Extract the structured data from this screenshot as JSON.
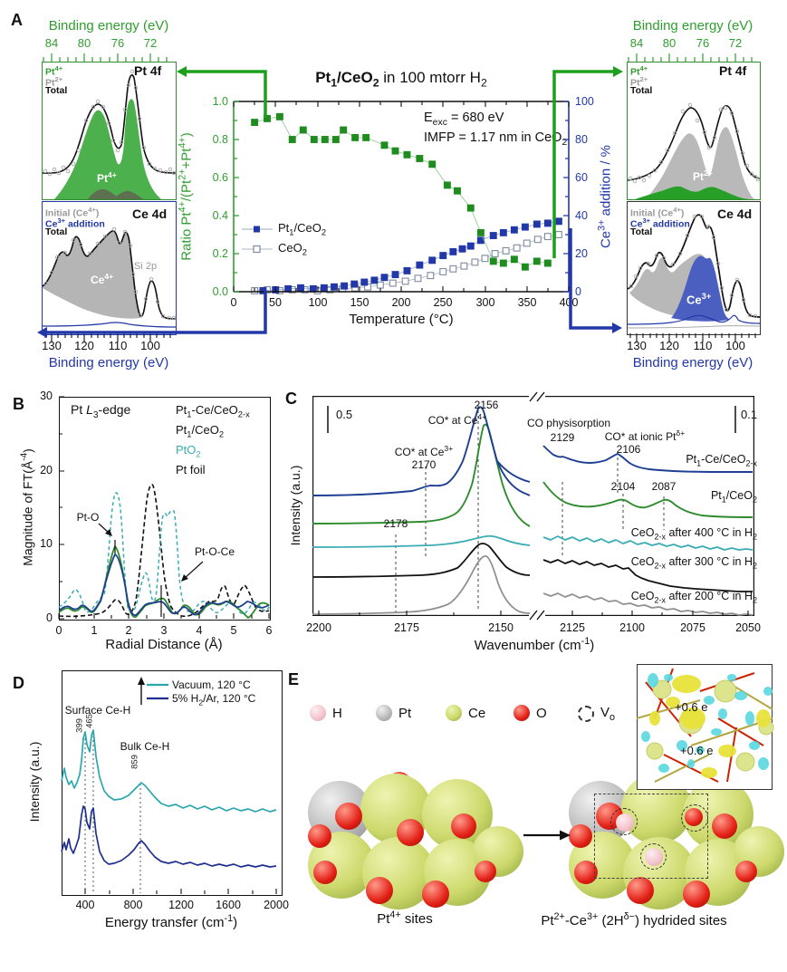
{
  "figure": {
    "panels": {
      "A": "A",
      "B": "B",
      "C": "C",
      "D": "D",
      "E": "E"
    }
  },
  "panelA": {
    "title_html": "<b>Pt<sub>1</sub>/CeO<sub>2</sub></b> in 100 mtorr H<sub>2</sub>",
    "note1_html": "E<sub>exc</sub> = 680 eV",
    "note2_html": "IMFP = 1.17 nm in CeO<sub>2</sub>",
    "ylabel_left_html": "Ratio Pt<sup>4+</sup>/(Pt<sup>2+</sup>+Pt<sup>4+</sup>)",
    "ylabel_right_html": "Ce<sup>3+</sup> addition / %",
    "xlabel": "Temperature (°C)",
    "xticks": [
      "0",
      "50",
      "100",
      "150",
      "200",
      "250",
      "300",
      "350",
      "400"
    ],
    "yticks_left": [
      "0.0",
      "0.2",
      "0.4",
      "0.6",
      "0.8",
      "1.0"
    ],
    "yticks_right": [
      "0",
      "20",
      "40",
      "60",
      "80",
      "100"
    ],
    "legend": [
      {
        "label_html": "Pt<sub>1</sub>/CeO<sub>2</sub>"
      },
      {
        "label_html": "CeO<sub>2</sub>"
      }
    ],
    "spectra": {
      "binding_energy_label": "Binding energy (eV)",
      "pt4f_ticks": [
        "84",
        "80",
        "76",
        "72"
      ],
      "ce4d_ticks": [
        "130",
        "120",
        "110",
        "100"
      ],
      "pt4f_title": "Pt 4f",
      "ce4d_title": "Ce 4d",
      "pt_legend": {
        "l1_html": "Pt<sup>4+</sup>",
        "l2_html": "Pt<sup>2+</sup>",
        "l3": "Total"
      },
      "ce_legend": {
        "l1_html": "Initial (Ce<sup>4+</sup>)",
        "l2_html": "Ce<sup>3+</sup> addition",
        "l3": "Total"
      },
      "left_top_peak_html": "Pt<sup>4+</sup>",
      "right_top_peak_html": "Pt<sup>2+</sup>",
      "left_bottom_peak_html": "Ce<sup>4+</sup>",
      "right_bottom_peak_html": "Ce<sup>3+</sup>",
      "si2p": "Si 2p"
    }
  },
  "panelB": {
    "edge_label_html": "Pt <i>L</i><sub>3</sub>-edge",
    "legend": [
      {
        "label_html": "Pt<sub>1</sub>-Ce/CeO<sub>2-x</sub>",
        "color": "#1f3f8f",
        "style": "solid"
      },
      {
        "label_html": "Pt<sub>1</sub>/CeO<sub>2</sub>",
        "color": "#2e8b2e",
        "style": "solid"
      },
      {
        "label_html": "PtO<sub>2</sub>",
        "color": "#3aacb4",
        "style": "dashed"
      },
      {
        "label_html": "Pt foil",
        "color": "#111111",
        "style": "dashed"
      }
    ],
    "ylabel_html": "Magnitude of FT(Å<sup>-4</sup>)",
    "yticks": [
      "0",
      "10",
      "20",
      "30"
    ],
    "xlabel": "Radial Distance (Å)",
    "xticks": [
      "0",
      "1",
      "2",
      "3",
      "4",
      "5",
      "6"
    ],
    "ann_pto": "Pt-O",
    "ann_ptoce": "Pt-O-Ce"
  },
  "panelC": {
    "scale_left": "0.5",
    "scale_right": "0.1",
    "ylabel": "Intensity (a.u.)",
    "xlabel_html": "Wavenumber (cm<sup>-1</sup>)",
    "xticks": [
      "2200",
      "2175",
      "2150",
      "2125",
      "2100",
      "2075",
      "2050"
    ],
    "ann": {
      "co_ce4_html": "CO* at Ce<sup>4+</sup>",
      "v2156": "2156",
      "co_ce3_html": "CO* at Ce<sup>3+</sup>",
      "v2170": "2170",
      "v2178": "2178",
      "co_phys": "CO physisorption",
      "v2129": "2129",
      "co_pt_html": "CO* at ionic Pt<sup>δ+</sup>",
      "v2106": "2106",
      "v2104": "2104",
      "v2087": "2087"
    },
    "curve_labels": [
      {
        "label_html": "Pt<sub>1</sub>-Ce/CeO<sub>2-x</sub>"
      },
      {
        "label_html": "Pt<sub>1</sub>/CeO<sub>2</sub>"
      },
      {
        "label_html": "CeO<sub>2-x</sub> after 400 °C in H<sub>2</sub>"
      },
      {
        "label_html": "CeO<sub>2-x</sub> after 300 °C in H<sub>2</sub>"
      },
      {
        "label_html": "CeO<sub>2-x</sub> after 200 °C in H<sub>2</sub>"
      }
    ]
  },
  "panelD": {
    "legend": [
      {
        "label_html": "Vacuum, 120 °C",
        "color": "#2aa7ad"
      },
      {
        "label_html": "5% H<sub>2</sub>/Ar, 120 °C",
        "color": "#1f2f8f"
      }
    ],
    "ann_surface": "Surface Ce-H",
    "v399": "399",
    "v465": "465",
    "ann_bulk": "Bulk Ce-H",
    "v859": "859",
    "ylabel": "Intensity (a.u.)",
    "xlabel_html": "Energy transfer (cm<sup>-1</sup>)",
    "xticks": [
      "400",
      "800",
      "1200",
      "1600",
      "2000"
    ]
  },
  "panelE": {
    "legend": [
      {
        "name": "H",
        "color": "#f3c3cb"
      },
      {
        "name": "Pt",
        "color": "#bcbcbc"
      },
      {
        "name": "Ce",
        "color": "#cdd96c"
      },
      {
        "name": "O",
        "color": "#e32016"
      },
      {
        "name_html": "V<sub>o</sub>",
        "style": "dashed-circle"
      }
    ],
    "left_label_html": "Pt<sup>4+</sup> sites",
    "right_label_html": "Pt<sup>2+</sup>-Ce<sup>3+</sup> (2H<sup>δ−</sup>) hydrided sites",
    "inset_charge_1": "+0.6 e",
    "inset_charge_2": "+0.6 e"
  },
  "chart_data": [
    {
      "panel": "A",
      "type": "scatter",
      "title": "Pt1/CeO2 in 100 mtorr H2",
      "annotations": [
        "Eexc = 680 eV",
        "IMFP = 1.17 nm in CeO2"
      ],
      "xlabel": "Temperature (°C)",
      "x_range": [
        0,
        400
      ],
      "ylabel_left": "Ratio Pt4+/(Pt2++Pt4+)",
      "y_range_left": [
        0.0,
        1.0
      ],
      "ylabel_right": "Ce3+ addition / %",
      "y_range_right": [
        0,
        100
      ],
      "legend_position": "middle-left",
      "series": [
        {
          "name": "Pt4+ ratio (Pt1/CeO2)",
          "axis": "left",
          "marker": "filled-square",
          "fill": "#1e8c1e",
          "stroke": "#1e8c1e",
          "line_color": "#8fc48f",
          "x": [
            25,
            40,
            55,
            70,
            83,
            96,
            109,
            122,
            131,
            145,
            158,
            180,
            193,
            207,
            222,
            237,
            255,
            267,
            283,
            295,
            310,
            322,
            335,
            348,
            362,
            375
          ],
          "y": [
            0.89,
            0.91,
            0.92,
            0.8,
            0.85,
            0.8,
            0.8,
            0.8,
            0.85,
            0.81,
            0.81,
            0.77,
            0.74,
            0.72,
            0.7,
            0.67,
            0.56,
            0.53,
            0.44,
            0.31,
            0.16,
            0.15,
            0.17,
            0.13,
            0.16,
            0.15
          ]
        },
        {
          "name": "Ce3+ addition, Pt1/CeO2",
          "axis": "right",
          "marker": "filled-square",
          "fill": "#2238a8",
          "stroke": "#2238a8",
          "line_color": "#9aa8c8",
          "x": [
            35,
            50,
            65,
            80,
            95,
            108,
            120,
            132,
            144,
            156,
            168,
            180,
            193,
            207,
            222,
            237,
            250,
            262,
            273,
            283,
            295,
            310,
            322,
            335,
            348,
            362,
            375,
            388
          ],
          "y": [
            0.5,
            1,
            1.5,
            2,
            1.5,
            2,
            2.5,
            3,
            4,
            5,
            6,
            7.5,
            9,
            11,
            14,
            16.5,
            19,
            21,
            22.5,
            24,
            27,
            29.5,
            31,
            32.5,
            34,
            35.5,
            36,
            37
          ]
        },
        {
          "name": "Ce3+ addition, CeO2",
          "axis": "right",
          "marker": "open-square",
          "fill": "#ffffff",
          "stroke": "#7d8aa0",
          "line_color": "#b0b8c4",
          "x": [
            25,
            40,
            55,
            70,
            85,
            100,
            115,
            130,
            145,
            160,
            175,
            190,
            205,
            220,
            235,
            250,
            262,
            275,
            288,
            300,
            312,
            325,
            338,
            350,
            363,
            375,
            388
          ],
          "y": [
            0.5,
            1,
            0.5,
            1,
            1,
            0.5,
            1,
            1.5,
            2,
            2.5,
            3.5,
            4.5,
            5.5,
            7,
            8.5,
            10.5,
            12,
            13.5,
            15.5,
            17.5,
            20,
            21.5,
            23,
            25.5,
            27.5,
            29,
            30
          ]
        }
      ]
    },
    {
      "panel": "B",
      "type": "line",
      "xlabel": "Radial Distance (Å)",
      "x_range": [
        0,
        6
      ],
      "ylabel": "Magnitude of FT(Å-4)",
      "y_range": [
        0,
        30
      ],
      "series": [
        {
          "name": "Pt1-Ce/CeO2-x",
          "color": "#1f3f8f",
          "style": "solid",
          "main_peaks": [
            {
              "r": 1.6,
              "magnitude": 8.7,
              "assignment": "Pt-O"
            },
            {
              "r": 2.9,
              "magnitude": 2.3,
              "assignment": "Pt-O-Ce"
            }
          ]
        },
        {
          "name": "Pt1/CeO2",
          "color": "#2e8b2e",
          "style": "solid",
          "main_peaks": [
            {
              "r": 1.6,
              "magnitude": 9.8,
              "assignment": "Pt-O"
            },
            {
              "r": 2.9,
              "magnitude": 2.8,
              "assignment": "Pt-O-Ce"
            }
          ]
        },
        {
          "name": "PtO2",
          "color": "#3aacb4",
          "style": "dashed",
          "main_peaks": [
            {
              "r": 1.65,
              "magnitude": 16.5
            },
            {
              "r": 3.1,
              "magnitude": 14.8
            }
          ]
        },
        {
          "name": "Pt foil",
          "color": "#111111",
          "style": "dashed",
          "main_peaks": [
            {
              "r": 2.6,
              "magnitude": 18.5
            }
          ]
        }
      ]
    },
    {
      "panel": "C",
      "type": "line",
      "xlabel": "Wavenumber (cm-1)",
      "x_range": [
        2200,
        2050
      ],
      "axis_break": [
        2140,
        2137
      ],
      "ylabel": "Intensity (a.u.)",
      "scale_bars": {
        "left": 0.5,
        "right": 0.1
      },
      "curves": [
        {
          "name": "Pt1-Ce/CeO2-x",
          "color": "#1f3f94",
          "peaks": [
            2170,
            2156,
            2129,
            2106
          ]
        },
        {
          "name": "Pt1/CeO2",
          "color": "#2e8b2e",
          "peaks": [
            2156,
            2104,
            2087
          ]
        },
        {
          "name": "CeO2-x after 400 °C in H2",
          "color": "#3aacb4",
          "peaks": [
            2178,
            2156
          ]
        },
        {
          "name": "CeO2-x after 300 °C in H2",
          "color": "#111111",
          "peaks": [
            2156
          ]
        },
        {
          "name": "CeO2-x after 200 °C in H2",
          "color": "#909090",
          "peaks": [
            2156
          ]
        }
      ],
      "assignments": [
        {
          "wavenumber": 2170,
          "label": "CO* at Ce3+"
        },
        {
          "wavenumber": 2156,
          "label": "CO* at Ce4+"
        },
        {
          "wavenumber": 2178,
          "label": ""
        },
        {
          "wavenumber": 2129,
          "label": "CO physisorption"
        },
        {
          "wavenumber": 2106,
          "label": "CO* at ionic Ptδ+"
        },
        {
          "wavenumber": 2104,
          "label": ""
        },
        {
          "wavenumber": 2087,
          "label": ""
        }
      ]
    },
    {
      "panel": "D",
      "type": "line",
      "xlabel": "Energy transfer (cm-1)",
      "x_range": [
        200,
        2000
      ],
      "ylabel": "Intensity (a.u.)",
      "curves": [
        {
          "name": "Vacuum, 120 °C",
          "color": "#2aa7ad"
        },
        {
          "name": "5% H2/Ar, 120 °C",
          "color": "#1f2f8f"
        }
      ],
      "peaks": [
        {
          "position": 399,
          "assignment": "Surface Ce-H"
        },
        {
          "position": 465,
          "assignment": "Surface Ce-H"
        },
        {
          "position": 859,
          "assignment": "Bulk Ce-H"
        }
      ]
    }
  ]
}
